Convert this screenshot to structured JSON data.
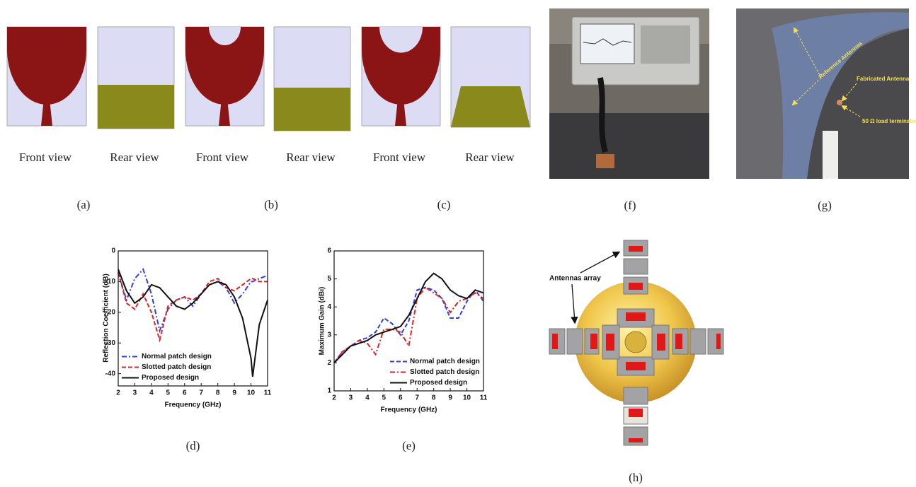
{
  "antenna_panels": [
    {
      "label": "(a)",
      "front": "Front view",
      "rear": "Rear view"
    },
    {
      "label": "(b)",
      "front": "Front view",
      "rear": "Rear view"
    },
    {
      "label": "(c)",
      "front": "Front view",
      "rear": "Rear view"
    }
  ],
  "photo_panels": [
    {
      "label": "(f)"
    },
    {
      "label": "(g)",
      "annotations": [
        "Reference Antennas",
        "Fabricated Antenna",
        "50 Ω load terminator"
      ]
    }
  ],
  "diagram": {
    "label": "(h)",
    "annotation": "Antennas array"
  },
  "chart_data": [
    {
      "type": "line",
      "panel_label": "(d)",
      "x_label": "Frequency (GHz)",
      "y_label": "Reflection Coefficient (dB)",
      "x": [
        2,
        2.5,
        3,
        3.5,
        4,
        4.5,
        5,
        5.5,
        6,
        6.5,
        7,
        7.5,
        8,
        8.5,
        9,
        9.5,
        10,
        10.1,
        10.5,
        11
      ],
      "xlim": [
        2,
        11
      ],
      "xticks": [
        2,
        3,
        4,
        5,
        6,
        7,
        8,
        9,
        10,
        11
      ],
      "ylim": [
        -44,
        0
      ],
      "yticks": [
        -40,
        -30,
        -20,
        -10,
        0
      ],
      "series": [
        {
          "name": "Normal patch design",
          "color": "#2f3fe0",
          "dash": "dash-dot",
          "values": [
            -7,
            -16,
            -9,
            -6,
            -14,
            -26,
            -19,
            -16,
            -15,
            -18,
            -14,
            -11,
            -10,
            -12,
            -17,
            -14,
            -10,
            -10,
            -9,
            -8
          ]
        },
        {
          "name": "Slotted patch design",
          "color": "#e02020",
          "dash": "dashed",
          "values": [
            -7,
            -17,
            -19,
            -14,
            -20,
            -29,
            -18,
            -16,
            -15,
            -16,
            -14,
            -10,
            -9,
            -12,
            -13,
            -11,
            -9,
            -9,
            -10,
            -10
          ]
        },
        {
          "name": "Proposed design",
          "color": "#111111",
          "dash": "solid",
          "values": [
            -6,
            -13,
            -17,
            -15,
            -11,
            -12,
            -15,
            -18,
            -19,
            -17,
            -14,
            -11,
            -10,
            -11,
            -15,
            -22,
            -35,
            -41,
            -24,
            -16
          ]
        }
      ],
      "legend": "lower-left"
    },
    {
      "type": "line",
      "panel_label": "(e)",
      "x_label": "Frequency (GHz)",
      "y_label": "Maximum Gain (dBi)",
      "x": [
        2,
        2.5,
        3,
        3.5,
        4,
        4.5,
        5,
        5.5,
        6,
        6.5,
        7,
        7.5,
        8,
        8.5,
        9,
        9.5,
        10,
        10.5,
        11
      ],
      "xlim": [
        2,
        11
      ],
      "xticks": [
        2,
        3,
        4,
        5,
        6,
        7,
        8,
        9,
        10,
        11
      ],
      "ylim": [
        1,
        6
      ],
      "yticks": [
        1,
        2,
        3,
        4,
        5,
        6
      ],
      "series": [
        {
          "name": "Normal patch design",
          "color": "#2f3fe0",
          "dash": "dashed",
          "values": [
            2,
            2.4,
            2.6,
            2.8,
            2.9,
            3.1,
            3.6,
            3.4,
            3,
            3.5,
            4.6,
            4.7,
            4.6,
            4.3,
            3.6,
            3.6,
            4.2,
            4.6,
            4.2
          ]
        },
        {
          "name": "Slotted patch design",
          "color": "#e02020",
          "dash": "dash-dot",
          "values": [
            2,
            2.4,
            2.6,
            2.8,
            2.7,
            2.3,
            3.2,
            3.2,
            3.1,
            2.6,
            4.3,
            4.7,
            4.5,
            4.3,
            3.8,
            4.2,
            4.3,
            4.5,
            4.3
          ]
        },
        {
          "name": "Proposed design",
          "color": "#111111",
          "dash": "solid",
          "values": [
            2,
            2.3,
            2.6,
            2.7,
            2.8,
            3.0,
            3.1,
            3.2,
            3.3,
            3.7,
            4.3,
            4.9,
            5.2,
            5.0,
            4.6,
            4.4,
            4.3,
            4.6,
            4.5
          ]
        }
      ],
      "legend": "lower-right"
    }
  ]
}
